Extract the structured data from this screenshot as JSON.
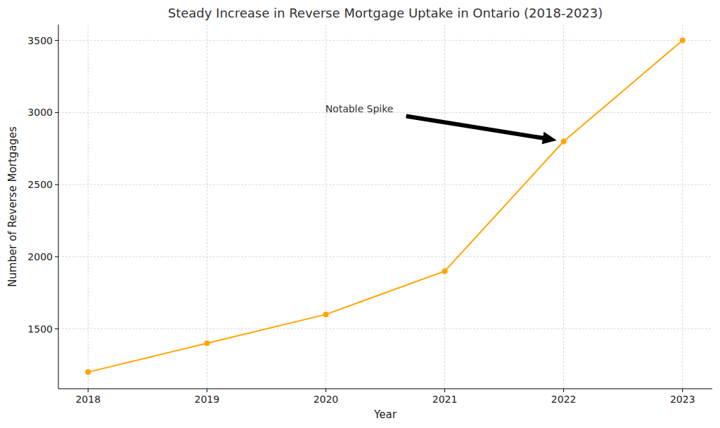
{
  "chart_data": {
    "type": "line",
    "title": "Steady Increase in Reverse Mortgage Uptake in Ontario (2018-2023)",
    "x_label": "Year",
    "y_label": "Number of Reverse Mortgages",
    "x": [
      2018,
      2019,
      2020,
      2021,
      2022,
      2023
    ],
    "values": [
      1200,
      1400,
      1600,
      1900,
      2800,
      3500
    ],
    "color": "#ffa500",
    "marker": "circle",
    "line_style": "solid",
    "xlim": [
      2017.75,
      2023.25
    ],
    "xticks": [
      2018,
      2019,
      2020,
      2021,
      2022,
      2023
    ],
    "ylim": [
      1085,
      3610
    ],
    "yticks": [
      1500,
      2000,
      2500,
      3000,
      3500
    ],
    "grid": true,
    "annotations": [
      {
        "text": "Notable Spike",
        "x": 2022,
        "y": 2800
      }
    ]
  }
}
